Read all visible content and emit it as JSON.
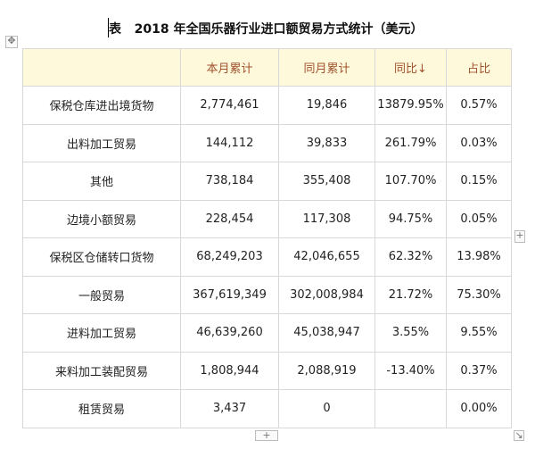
{
  "title": "表   2018 年全国乐器行业进口额贸易方式统计（美元）",
  "table": {
    "header": [
      "本月累计",
      "同月累计",
      "同比↓",
      "占比"
    ],
    "rows": [
      [
        "保税仓库进出境货物",
        "2,774,461",
        "19,846",
        "13879.95%",
        "0.57%"
      ],
      [
        "出料加工贸易",
        "144,112",
        "39,833",
        "261.79%",
        "0.03%"
      ],
      [
        "其他",
        "738,184",
        "355,408",
        "107.70%",
        "0.15%"
      ],
      [
        "边境小额贸易",
        "228,454",
        "117,308",
        "94.75%",
        "0.05%"
      ],
      [
        "保税区仓储转口货物",
        "68,249,203",
        "42,046,655",
        "62.32%",
        "13.98%"
      ],
      [
        "一般贸易",
        "367,619,349",
        "302,008,984",
        "21.72%",
        "75.30%"
      ],
      [
        "进料加工贸易",
        "46,639,260",
        "45,038,947",
        "3.55%",
        "9.55%"
      ],
      [
        "来料加工装配贸易",
        "1,808,944",
        "2,088,919",
        "-13.40%",
        "0.37%"
      ],
      [
        "租赁贸易",
        "3,437",
        "0",
        null,
        "0.00%"
      ]
    ]
  }
}
